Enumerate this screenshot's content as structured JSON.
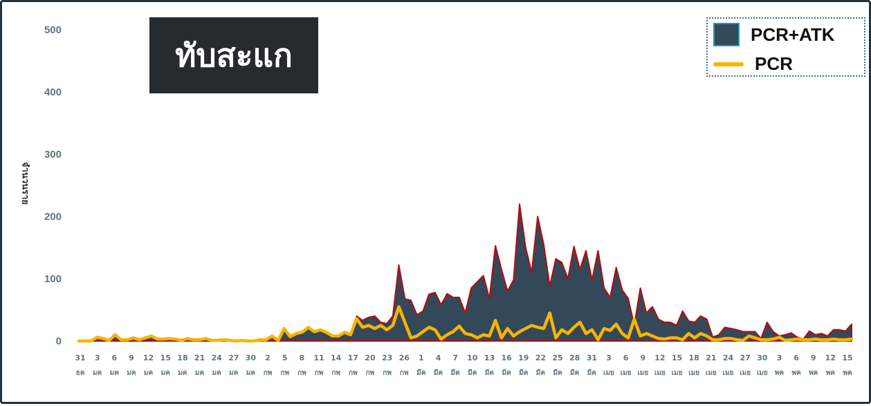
{
  "chart_data": {
    "type": "area",
    "title": "ทับสะแก",
    "ylabel": "จำนวนราย",
    "xlabel": "",
    "ylim": [
      0,
      500
    ],
    "y_ticks": [
      "0",
      "100",
      "200",
      "300",
      "400",
      "500"
    ],
    "x_tick_days": [
      "31",
      "3",
      "6",
      "9",
      "12",
      "15",
      "18",
      "21",
      "24",
      "27",
      "30",
      "2",
      "5",
      "8",
      "11",
      "14",
      "17",
      "20",
      "23",
      "26",
      "1",
      "4",
      "7",
      "10",
      "13",
      "16",
      "19",
      "22",
      "25",
      "28",
      "31",
      "3",
      "6",
      "9",
      "12",
      "15",
      "18",
      "21",
      "24",
      "27",
      "30",
      "3",
      "6",
      "9",
      "12",
      "15"
    ],
    "x_tick_months": [
      "ธค",
      "มค",
      "มค",
      "มค",
      "มค",
      "มค",
      "มค",
      "มค",
      "มค",
      "มค",
      "มค",
      "กพ",
      "กพ",
      "กพ",
      "กพ",
      "กพ",
      "กพ",
      "กพ",
      "กพ",
      "กพ",
      "มีค",
      "มีค",
      "มีค",
      "มีค",
      "มีค",
      "มีค",
      "มีค",
      "มีค",
      "มีค",
      "มีค",
      "มีค",
      "เมย",
      "เมย",
      "เมย",
      "เมย",
      "เมย",
      "เมย",
      "เมย",
      "เมย",
      "เมย",
      "เมย",
      "พค",
      "พค",
      "พค",
      "พค",
      "พค"
    ],
    "legend_position": "top-right",
    "grid": false,
    "series": [
      {
        "name": "PCR+ATK",
        "kind": "area",
        "fill": "#33495a",
        "stroke": "#b30c0c",
        "values": [
          0,
          0,
          0,
          6,
          4,
          1,
          10,
          2,
          2,
          5,
          2,
          5,
          8,
          3,
          3,
          4,
          3,
          1,
          4,
          2,
          2,
          4,
          1,
          1,
          2,
          1,
          0,
          1,
          0,
          0,
          2,
          2,
          8,
          1,
          20,
          7,
          12,
          14,
          22,
          15,
          18,
          14,
          8,
          8,
          14,
          10,
          40,
          33,
          38,
          40,
          30,
          28,
          40,
          122,
          68,
          65,
          42,
          48,
          75,
          78,
          58,
          76,
          70,
          70,
          45,
          85,
          95,
          105,
          68,
          153,
          115,
          80,
          98,
          220,
          150,
          110,
          200,
          155,
          88,
          132,
          126,
          100,
          152,
          115,
          145,
          98,
          145,
          85,
          70,
          118,
          82,
          68,
          25,
          85,
          45,
          55,
          35,
          30,
          30,
          25,
          48,
          32,
          30,
          40,
          35,
          6,
          10,
          22,
          20,
          18,
          15,
          15,
          15,
          4,
          30,
          15,
          8,
          10,
          13,
          6,
          3,
          16,
          10,
          12,
          8,
          18,
          18,
          16,
          27
        ],
        "approximate": true
      },
      {
        "name": "PCR",
        "kind": "line",
        "stroke": "#f7b500",
        "values": [
          0,
          0,
          0,
          6,
          4,
          1,
          10,
          2,
          2,
          5,
          2,
          5,
          8,
          3,
          3,
          4,
          3,
          1,
          4,
          2,
          2,
          4,
          1,
          1,
          2,
          1,
          0,
          1,
          0,
          0,
          2,
          2,
          8,
          1,
          20,
          7,
          12,
          14,
          22,
          15,
          18,
          14,
          8,
          8,
          14,
          10,
          36,
          22,
          25,
          20,
          25,
          18,
          25,
          55,
          30,
          5,
          8,
          15,
          22,
          18,
          3,
          10,
          15,
          24,
          12,
          10,
          5,
          10,
          8,
          33,
          5,
          20,
          8,
          15,
          20,
          25,
          22,
          20,
          45,
          5,
          18,
          12,
          22,
          30,
          12,
          18,
          2,
          20,
          17,
          27,
          12,
          5,
          35,
          8,
          12,
          8,
          4,
          3,
          5,
          5,
          2,
          12,
          5,
          12,
          8,
          2,
          2,
          4,
          4,
          2,
          1,
          8,
          5,
          2,
          2,
          3,
          6,
          1,
          2,
          3,
          2,
          2,
          3,
          2,
          2,
          3,
          2,
          2,
          3
        ]
      }
    ]
  }
}
